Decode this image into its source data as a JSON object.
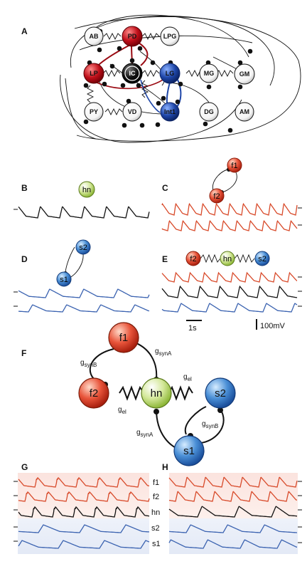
{
  "panels": {
    "a": "A",
    "b": "B",
    "c": "C",
    "d": "D",
    "e": "E",
    "f": "F",
    "g": "G",
    "h": "H"
  },
  "network": {
    "nodes": [
      {
        "id": "AB",
        "label": "AB",
        "color": "#ffffff"
      },
      {
        "id": "PD",
        "label": "PD",
        "color": "#c0101a"
      },
      {
        "id": "LPG",
        "label": "LPG",
        "color": "#ffffff"
      },
      {
        "id": "LP",
        "label": "LP",
        "color": "#c0101a"
      },
      {
        "id": "IC",
        "label": "IC",
        "color": "#111111"
      },
      {
        "id": "LG",
        "label": "LG",
        "color": "#1e46a8"
      },
      {
        "id": "MG",
        "label": "MG",
        "color": "#ffffff"
      },
      {
        "id": "GM",
        "label": "GM",
        "color": "#ffffff"
      },
      {
        "id": "PY",
        "label": "PY",
        "color": "#ffffff"
      },
      {
        "id": "VD",
        "label": "VD",
        "color": "#ffffff"
      },
      {
        "id": "Int1",
        "label": "Int1",
        "color": "#1e46a8"
      },
      {
        "id": "DG",
        "label": "DG",
        "color": "#ffffff"
      },
      {
        "id": "AM",
        "label": "AM",
        "color": "#ffffff"
      }
    ]
  },
  "cells": {
    "hn": "hn",
    "f1": "f1",
    "f2": "f2",
    "s1": "s1",
    "s2": "s2"
  },
  "conductances": {
    "synA": "synA",
    "synB": "synB",
    "el": "el",
    "g": "g"
  },
  "scale": {
    "time": "1s",
    "voltage": "100mV"
  },
  "trace_labels": [
    "f1",
    "f2",
    "hn",
    "s2",
    "s1"
  ],
  "colors": {
    "fast": "#d84a2a",
    "hub": "#111111",
    "slow": "#3a62b0",
    "fast_fill": "#e8543a",
    "hub_fill": "#c8e07a",
    "slow_fill": "#4a8fd6",
    "red": "#c0101a",
    "blue": "#1e46a8"
  }
}
